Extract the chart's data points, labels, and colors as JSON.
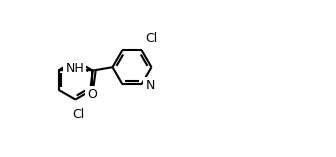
{
  "background": "#ffffff",
  "bond_color": "#000000",
  "line_width": 1.5,
  "font_size": 9,
  "figsize": [
    3.36,
    1.57
  ],
  "dpi": 100,
  "xlim": [
    0,
    10
  ],
  "ylim": [
    0,
    5
  ]
}
